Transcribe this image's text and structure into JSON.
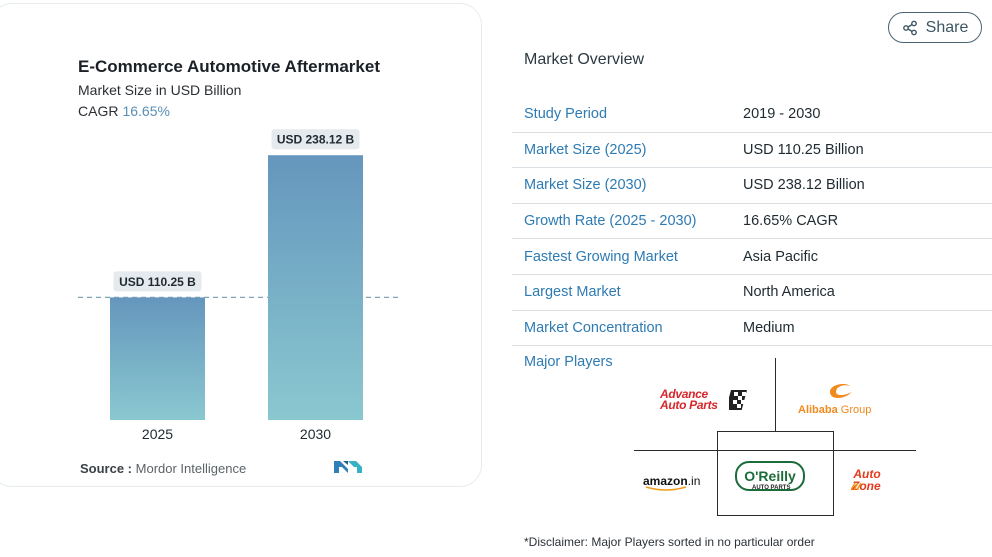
{
  "chart_data": {
    "type": "bar",
    "title": "E-Commerce Automotive Aftermarket",
    "subtitle": "Market Size in USD Billion",
    "cagr_label": "CAGR",
    "cagr_value": "16.65%",
    "categories": [
      "2025",
      "2030"
    ],
    "values": [
      110.25,
      238.12
    ],
    "data_labels": [
      "USD 110.25 B",
      "USD 238.12 B"
    ],
    "ylim": [
      0,
      250
    ],
    "colors": {
      "bar_top": "#6596bd",
      "bar_bottom": "#8ac8d0",
      "label_bg": "#e4eaed",
      "dashed_line": "#7fa3b7"
    }
  },
  "source": {
    "label": "Source :",
    "text": "Mordor Intelligence"
  },
  "share": {
    "label": "Share",
    "icon": "share-icon"
  },
  "overview": {
    "title": "Market Overview",
    "rows": [
      {
        "label": "Study Period",
        "value": "2019 - 2030"
      },
      {
        "label": "Market Size (2025)",
        "value": "USD 110.25 Billion"
      },
      {
        "label": "Market Size (2030)",
        "value": "USD 238.12 Billion"
      },
      {
        "label": "Growth Rate (2025 - 2030)",
        "value": "16.65% CAGR"
      },
      {
        "label": "Fastest Growing Market",
        "value": "Asia Pacific"
      },
      {
        "label": "Largest Market",
        "value": "North America"
      },
      {
        "label": "Market Concentration",
        "value": "Medium"
      }
    ]
  },
  "players": {
    "label": "Major Players",
    "advance_line1": "Advance",
    "advance_line2": "Auto Parts",
    "alibaba": "Alibaba",
    "alibaba_group": "Group",
    "amazon": "amazon",
    "amazon_suffix": ".in",
    "oreilly": "O'Reilly",
    "oreilly_sub": "AUTO PARTS",
    "autozone_line1": "Auto",
    "autozone_line2": "Zone"
  },
  "disclaimer": "*Disclaimer: Major Players sorted in no particular order"
}
